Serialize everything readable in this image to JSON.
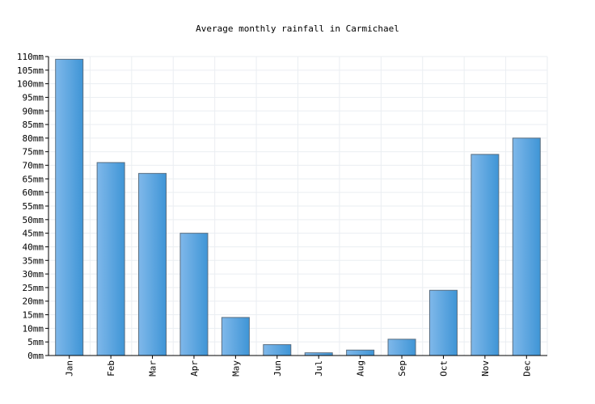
{
  "chart_data": {
    "type": "bar",
    "title": "Average monthly rainfall in Carmichael",
    "xlabel": "",
    "ylabel": "",
    "unit": "mm",
    "categories": [
      "Jan",
      "Feb",
      "Mar",
      "Apr",
      "May",
      "Jun",
      "Jul",
      "Aug",
      "Sep",
      "Oct",
      "Nov",
      "Dec"
    ],
    "values": [
      109,
      71,
      67,
      45,
      14,
      4,
      1,
      2,
      6,
      24,
      74,
      80
    ],
    "ylim": [
      0,
      110
    ],
    "ytick_step": 5,
    "ytick_labels": [
      "0mm",
      "5mm",
      "10mm",
      "15mm",
      "20mm",
      "25mm",
      "30mm",
      "35mm",
      "40mm",
      "45mm",
      "50mm",
      "55mm",
      "60mm",
      "65mm",
      "70mm",
      "75mm",
      "80mm",
      "85mm",
      "90mm",
      "95mm",
      "100mm",
      "105mm",
      "110mm"
    ],
    "grid": true,
    "legend": "none",
    "colors": {
      "bar_light": "#7fb8ea",
      "bar_dark": "#3f95d6",
      "bar_edge": "#5a6e80",
      "grid": "#eaeef2",
      "axis": "#000000"
    }
  }
}
